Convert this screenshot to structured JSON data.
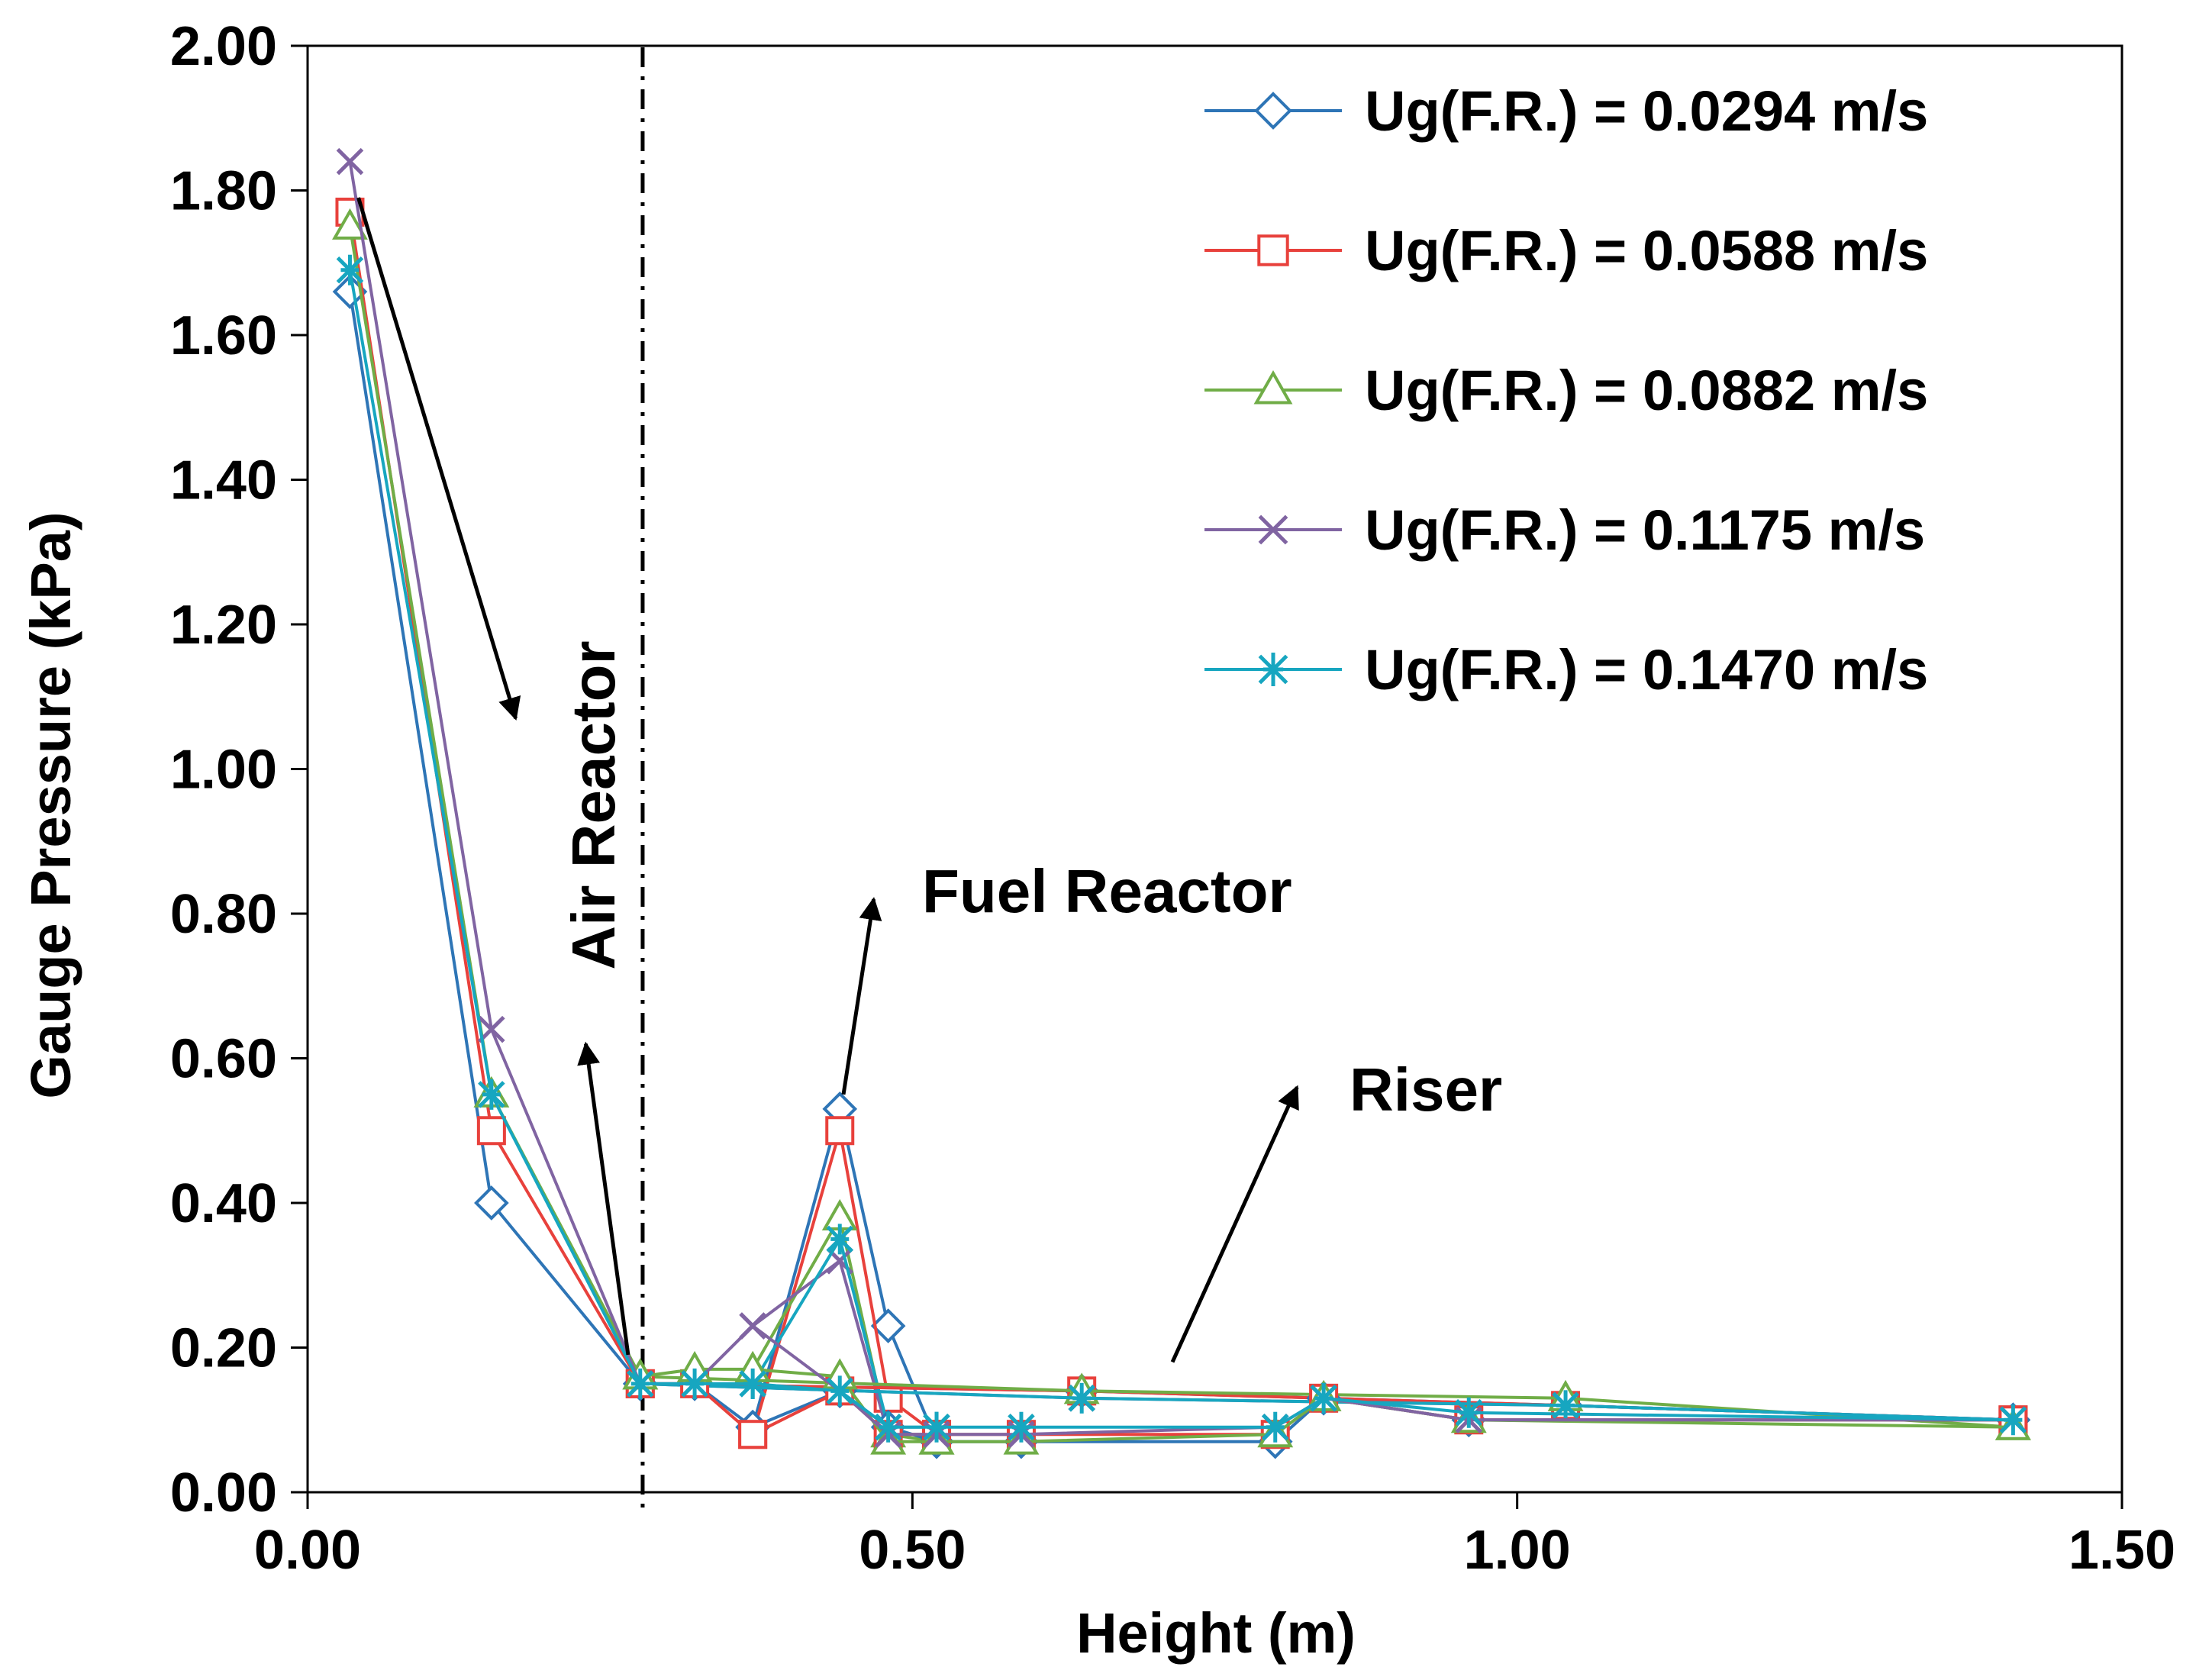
{
  "chart_data": {
    "type": "line",
    "title": "",
    "xlabel": "Height (m)",
    "ylabel": "Gauge Pressure (kPa)",
    "xlim": [
      0,
      1.5
    ],
    "ylim": [
      0,
      2.0
    ],
    "x_ticks": [
      0,
      0.5,
      1.0,
      1.5
    ],
    "x_tick_labels": [
      "0.00",
      "0.50",
      "1.00",
      "1.50"
    ],
    "y_ticks": [
      0,
      0.2,
      0.4,
      0.6,
      0.8,
      1.0,
      1.2,
      1.4,
      1.6,
      1.8,
      2.0
    ],
    "y_tick_labels": [
      "0.00",
      "0.20",
      "0.40",
      "0.60",
      "0.80",
      "1.00",
      "1.20",
      "1.40",
      "1.60",
      "1.80",
      "2.00"
    ],
    "grid": false,
    "legend_position": "top-right",
    "divider_x": 0.277,
    "series": [
      {
        "name": "Ug(F.R.) = 0.0294 m/s",
        "color": "#2E75B6",
        "marker": "diamond",
        "points": [
          [
            0.035,
            1.66
          ],
          [
            0.152,
            0.4
          ],
          [
            0.275,
            0.15
          ],
          [
            0.32,
            0.15
          ],
          [
            0.368,
            0.09
          ],
          [
            0.44,
            0.14
          ],
          [
            0.48,
            0.09
          ],
          [
            0.52,
            0.07
          ],
          [
            0.59,
            0.07
          ],
          [
            0.8,
            0.07
          ],
          [
            0.84,
            0.13
          ],
          [
            0.96,
            0.1
          ],
          [
            1.41,
            0.1
          ]
        ]
      },
      {
        "name": "Ug(F.R.) = 0.0588 m/s",
        "color": "#E8413C",
        "marker": "square",
        "points": [
          [
            0.035,
            1.77
          ],
          [
            0.152,
            0.5
          ],
          [
            0.275,
            0.15
          ],
          [
            0.32,
            0.15
          ],
          [
            0.368,
            0.08
          ],
          [
            0.44,
            0.14
          ],
          [
            0.48,
            0.08
          ],
          [
            0.52,
            0.08
          ],
          [
            0.59,
            0.08
          ],
          [
            0.8,
            0.08
          ],
          [
            0.84,
            0.13
          ],
          [
            0.96,
            0.1
          ],
          [
            1.41,
            0.1
          ]
        ]
      },
      {
        "name": "Ug(F.R.) = 0.0882 m/s",
        "color": "#70AD47",
        "marker": "triangle",
        "points": [
          [
            0.035,
            1.75
          ],
          [
            0.152,
            0.55
          ],
          [
            0.275,
            0.16
          ],
          [
            0.32,
            0.17
          ],
          [
            0.368,
            0.17
          ],
          [
            0.44,
            0.16
          ],
          [
            0.48,
            0.07
          ],
          [
            0.52,
            0.07
          ],
          [
            0.59,
            0.07
          ],
          [
            0.8,
            0.08
          ],
          [
            0.84,
            0.13
          ],
          [
            0.96,
            0.1
          ],
          [
            1.41,
            0.09
          ]
        ]
      },
      {
        "name": "Ug(F.R.) = 0.1175 m/s",
        "color": "#8064A2",
        "marker": "x",
        "points": [
          [
            0.035,
            1.84
          ],
          [
            0.152,
            0.64
          ],
          [
            0.275,
            0.15
          ],
          [
            0.32,
            0.15
          ],
          [
            0.368,
            0.23
          ],
          [
            0.44,
            0.14
          ],
          [
            0.48,
            0.08
          ],
          [
            0.52,
            0.08
          ],
          [
            0.59,
            0.08
          ],
          [
            0.8,
            0.09
          ],
          [
            0.84,
            0.13
          ],
          [
            0.96,
            0.1
          ],
          [
            1.41,
            0.1
          ]
        ]
      },
      {
        "name": "Ug(F.R.) = 0.1470 m/s",
        "color": "#17A6C0",
        "marker": "asterisk",
        "points": [
          [
            0.035,
            1.69
          ],
          [
            0.152,
            0.55
          ],
          [
            0.275,
            0.15
          ],
          [
            0.32,
            0.15
          ],
          [
            0.368,
            0.15
          ],
          [
            0.44,
            0.14
          ],
          [
            0.48,
            0.09
          ],
          [
            0.52,
            0.09
          ],
          [
            0.59,
            0.09
          ],
          [
            0.8,
            0.09
          ],
          [
            0.84,
            0.13
          ],
          [
            0.96,
            0.11
          ],
          [
            1.41,
            0.1
          ]
        ]
      }
    ],
    "secondary_lines": [
      {
        "series": 0,
        "points": [
          [
            0.368,
            0.09
          ],
          [
            0.44,
            0.53
          ],
          [
            0.48,
            0.23
          ],
          [
            0.52,
            0.07
          ]
        ]
      },
      {
        "series": 1,
        "points": [
          [
            0.368,
            0.08
          ],
          [
            0.44,
            0.5
          ],
          [
            0.48,
            0.13
          ],
          [
            0.52,
            0.08
          ]
        ]
      },
      {
        "series": 2,
        "points": [
          [
            0.368,
            0.17
          ],
          [
            0.44,
            0.38
          ],
          [
            0.48,
            0.08
          ],
          [
            0.52,
            0.07
          ]
        ]
      },
      {
        "series": 3,
        "points": [
          [
            0.368,
            0.23
          ],
          [
            0.44,
            0.32
          ],
          [
            0.48,
            0.08
          ],
          [
            0.52,
            0.08
          ]
        ]
      },
      {
        "series": 4,
        "points": [
          [
            0.368,
            0.15
          ],
          [
            0.44,
            0.35
          ],
          [
            0.48,
            0.09
          ],
          [
            0.52,
            0.09
          ]
        ]
      },
      {
        "series": 0,
        "points": [
          [
            0.275,
            0.15
          ],
          [
            0.64,
            0.14
          ],
          [
            1.04,
            0.12
          ],
          [
            1.41,
            0.1
          ]
        ]
      },
      {
        "series": 1,
        "points": [
          [
            0.275,
            0.15
          ],
          [
            0.64,
            0.14
          ],
          [
            1.04,
            0.12
          ],
          [
            1.41,
            0.1
          ]
        ]
      },
      {
        "series": 2,
        "points": [
          [
            0.275,
            0.16
          ],
          [
            0.64,
            0.14
          ],
          [
            1.04,
            0.13
          ],
          [
            1.41,
            0.09
          ]
        ]
      },
      {
        "series": 3,
        "points": [
          [
            0.275,
            0.15
          ],
          [
            0.64,
            0.13
          ],
          [
            1.04,
            0.12
          ],
          [
            1.41,
            0.1
          ]
        ]
      },
      {
        "series": 4,
        "points": [
          [
            0.275,
            0.15
          ],
          [
            0.64,
            0.13
          ],
          [
            1.04,
            0.12
          ],
          [
            1.41,
            0.1
          ]
        ]
      }
    ],
    "annotations": [
      {
        "text": "Air Reactor",
        "rotated": true
      },
      {
        "text": "Fuel Reactor"
      },
      {
        "text": "Riser"
      }
    ],
    "arrows": [
      {
        "from": [
          0.042,
          1.79
        ],
        "to": [
          0.172,
          1.07
        ]
      },
      {
        "from": [
          0.265,
          0.19
        ],
        "to": [
          0.23,
          0.62
        ]
      },
      {
        "from": [
          0.443,
          0.55
        ],
        "to": [
          0.468,
          0.82
        ]
      },
      {
        "from": [
          0.715,
          0.18
        ],
        "to": [
          0.818,
          0.56
        ]
      }
    ]
  }
}
